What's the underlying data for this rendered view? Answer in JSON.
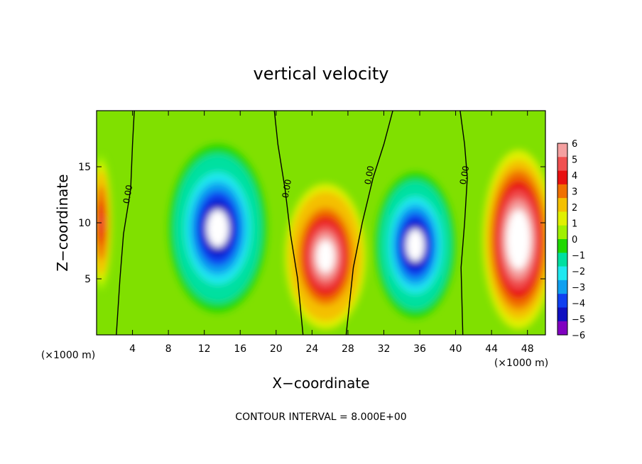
{
  "chart_data": {
    "type": "heatmap",
    "title": "vertical velocity",
    "xlabel": "X−coordinate",
    "ylabel": "Z−coordinate",
    "x_unit_left": "(×1000 m)",
    "x_unit_right": "(×1000 m)",
    "footer": "CONTOUR INTERVAL = 8.000E+00",
    "xlim": [
      0,
      50
    ],
    "ylim": [
      0,
      20
    ],
    "x_ticks": [
      4,
      8,
      12,
      16,
      20,
      24,
      28,
      32,
      36,
      40,
      44,
      48
    ],
    "y_ticks": [
      5,
      10,
      15
    ],
    "colorbar": {
      "min": -6,
      "max": 6,
      "tick_values": [
        6,
        5,
        4,
        3,
        2,
        1,
        0,
        -1,
        -2,
        -3,
        -4,
        -5,
        -6
      ],
      "tick_labels": [
        "6",
        "5",
        "4",
        "3",
        "2",
        "1",
        "0",
        "−1",
        "−2",
        "−3",
        "−4",
        "−5",
        "−6"
      ],
      "colors": [
        "#f4a0a0",
        "#f05050",
        "#e81010",
        "#f07000",
        "#f4c000",
        "#e0f000",
        "#a0f000",
        "#20d800",
        "#00e0a0",
        "#20e8f0",
        "#10a0f0",
        "#1040f0",
        "#1010c0",
        "#8000c0"
      ]
    },
    "zero_contour_labels": [
      {
        "x": 3.8,
        "y": 12.5,
        "text": "0.00"
      },
      {
        "x": 21.5,
        "y": 13.0,
        "text": "0.00"
      },
      {
        "x": 30.7,
        "y": 14.2,
        "text": "0.00"
      },
      {
        "x": 41.3,
        "y": 14.2,
        "text": "0.00"
      }
    ],
    "field_features": [
      {
        "kind": "updraft",
        "x": 0.5,
        "z": 10,
        "rx": 1.2,
        "rz": 6,
        "w": 5
      },
      {
        "kind": "downdraft",
        "x": 13.5,
        "z": 9.5,
        "rx": 5.5,
        "rz": 7.5,
        "w": -8
      },
      {
        "kind": "updraft",
        "x": 25.5,
        "z": 7,
        "rx": 4.5,
        "rz": 6.5,
        "w": 8
      },
      {
        "kind": "downdraft",
        "x": 35.5,
        "z": 8,
        "rx": 4.5,
        "rz": 6.5,
        "w": -8
      },
      {
        "kind": "updraft",
        "x": 47,
        "z": 8.5,
        "rx": 4,
        "rz": 8,
        "w": 9
      }
    ]
  }
}
